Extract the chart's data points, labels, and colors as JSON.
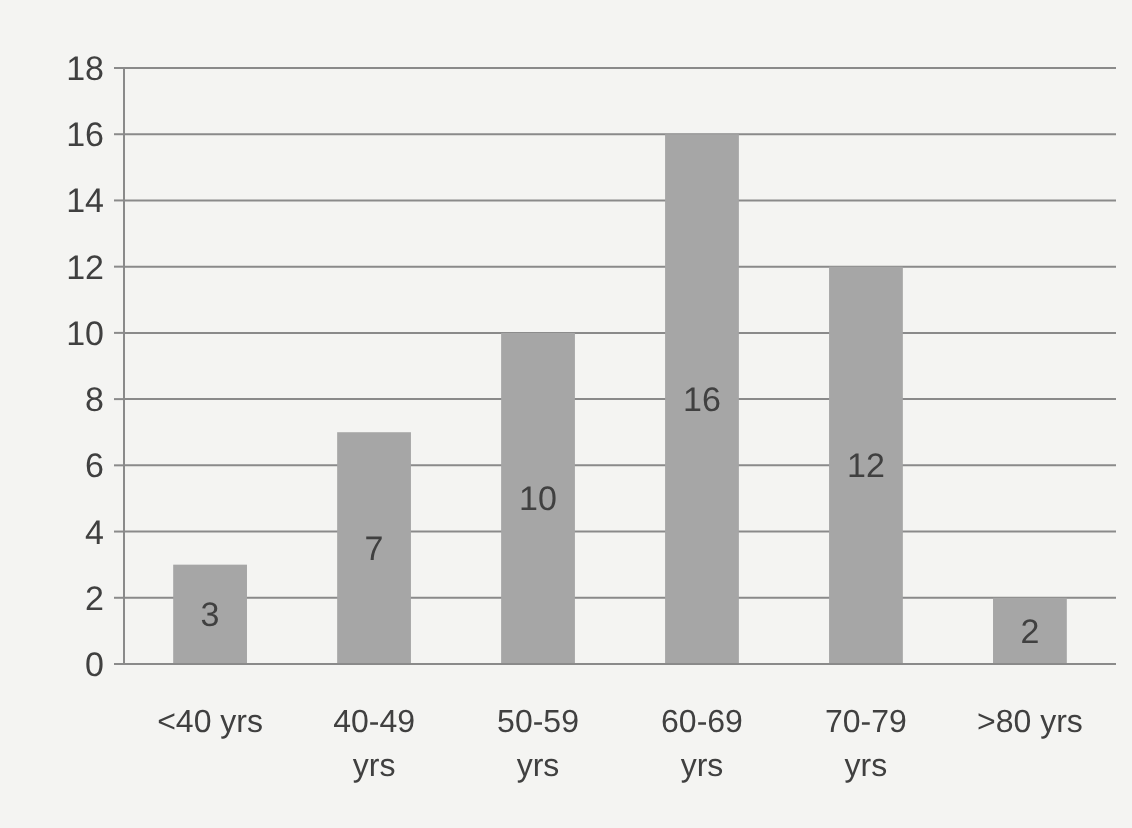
{
  "chart_data": {
    "type": "bar",
    "categories": [
      "<40 yrs",
      "40-49 yrs",
      "50-59 yrs",
      "60-69 yrs",
      "70-79 yrs",
      ">80 yrs"
    ],
    "values": [
      3,
      7,
      10,
      16,
      12,
      2
    ],
    "color": "#a6a6a6",
    "ylim": [
      0,
      18
    ],
    "yticks": [
      0,
      2,
      4,
      6,
      8,
      10,
      12,
      14,
      16,
      18
    ],
    "grid": "y",
    "data_labels": true
  }
}
